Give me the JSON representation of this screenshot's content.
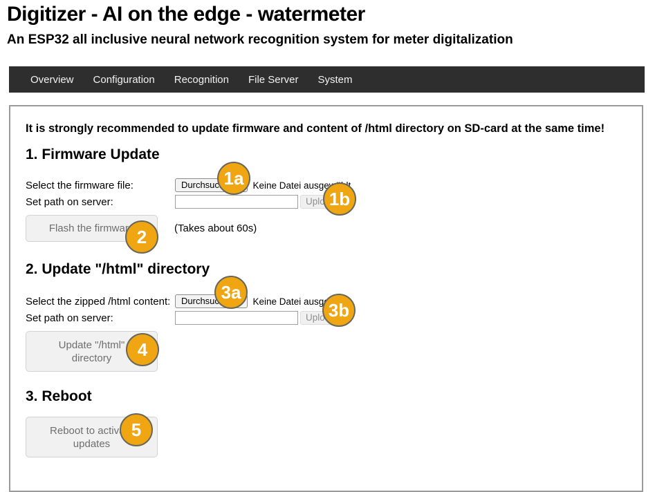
{
  "header": {
    "title": "Digitizer - AI on the edge - watermeter",
    "subtitle": "An ESP32 all inclusive neural network recognition system for meter digitalization"
  },
  "nav": {
    "items": [
      {
        "label": "Overview"
      },
      {
        "label": "Configuration"
      },
      {
        "label": "Recognition"
      },
      {
        "label": "File Server"
      },
      {
        "label": "System"
      }
    ]
  },
  "content": {
    "warning": "It is strongly recommended to update firmware and content of /html directory on SD-card at the same time!",
    "sections": {
      "firmware": {
        "heading": "1. Firmware Update",
        "file_label": "Select the firmware file:",
        "file_button": "Durchsuchen...",
        "file_status": "Keine Datei ausgewählt",
        "path_label": "Set path on server:",
        "path_value": "",
        "upload_button": "Upload",
        "action_button": "Flash the firmware",
        "note": "(Takes about 60s)"
      },
      "html_dir": {
        "heading": "2. Update \"/html\" directory",
        "file_label": "Select the zipped /html content:",
        "file_button": "Durchsuchen...",
        "file_status": "Keine Datei ausgewählt",
        "path_label": "Set path on server:",
        "path_value": "",
        "upload_button": "Upload",
        "action_button": "Update \"/html\" directory"
      },
      "reboot": {
        "heading": "3. Reboot",
        "action_button": "Reboot to activate updates"
      }
    },
    "badges": [
      {
        "label": "1a"
      },
      {
        "label": "1b"
      },
      {
        "label": "2"
      },
      {
        "label": "3a"
      },
      {
        "label": "3b"
      },
      {
        "label": "4"
      },
      {
        "label": "5"
      }
    ]
  },
  "colors": {
    "badge_fill": "#efa612",
    "badge_border": "#67675a",
    "nav_background": "#2e2e2e",
    "nav_text": "#f2f2f2",
    "panel_border": "#9a9a9a",
    "button_background": "#f1f1f1",
    "button_text": "#6e6e6e"
  }
}
